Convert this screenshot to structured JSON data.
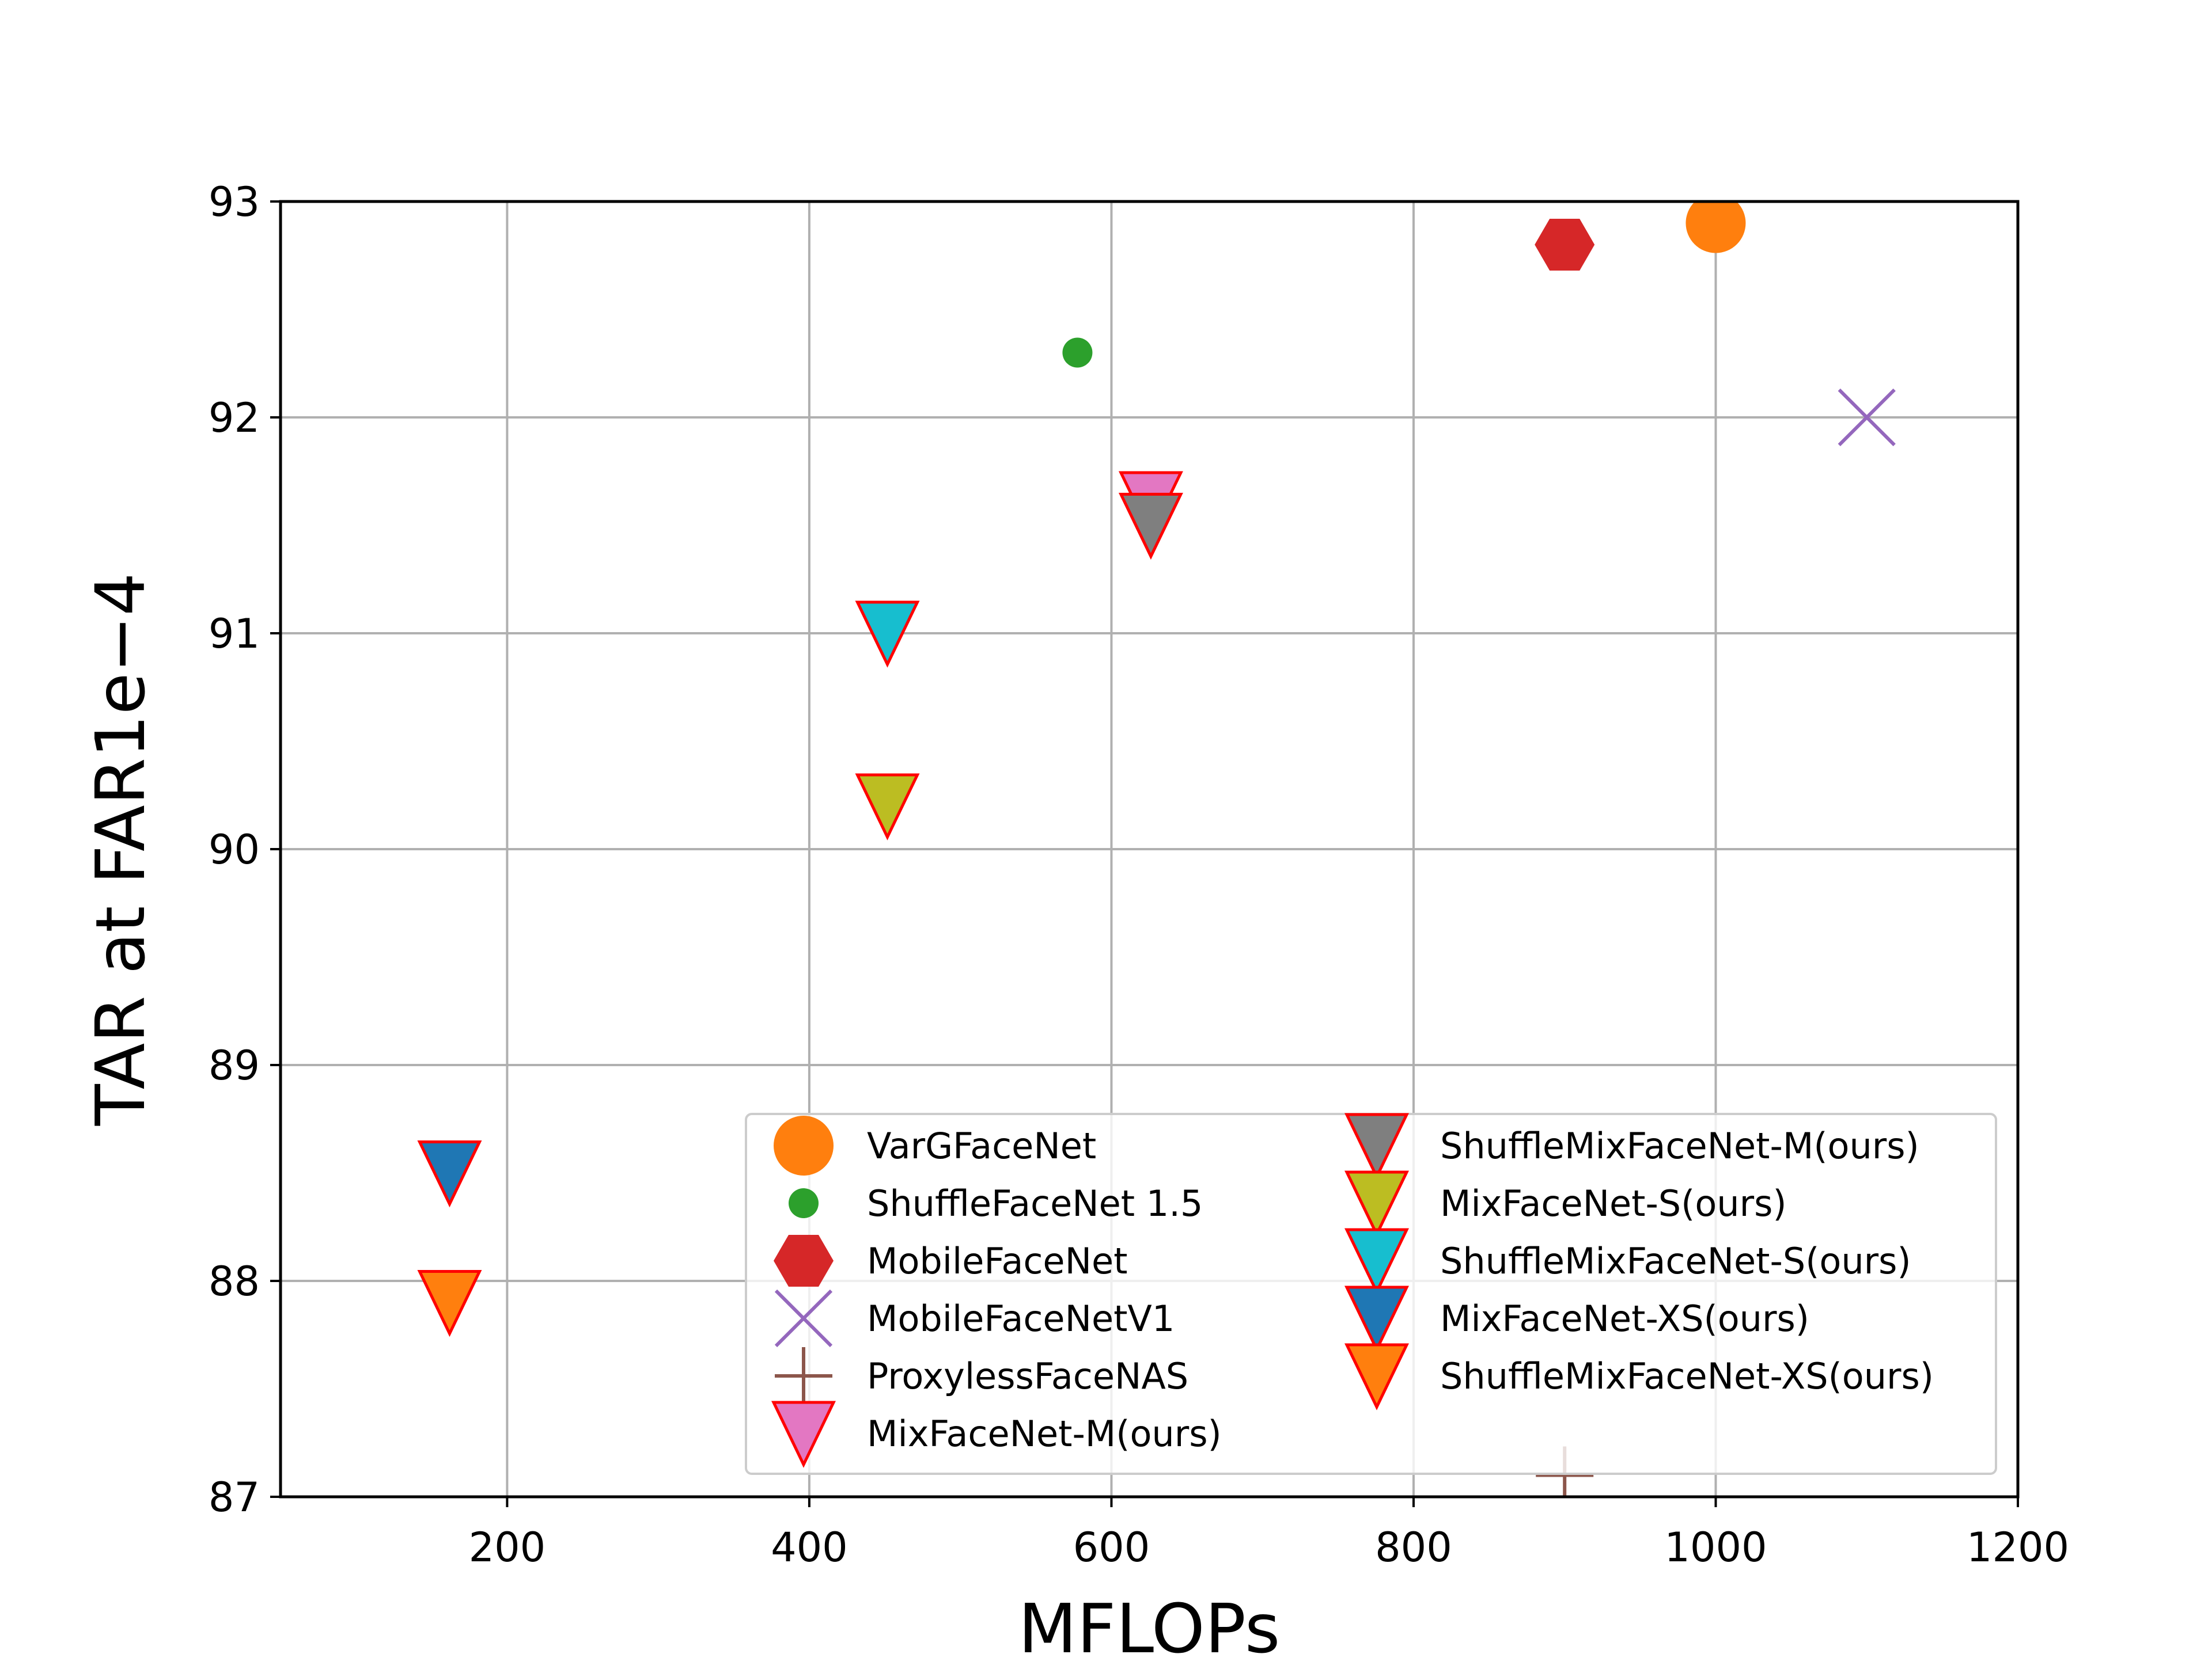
{
  "chart_data": {
    "type": "scatter",
    "title": "",
    "xlabel": "MFLOPs",
    "ylabel": "TAR at FAR1e−4",
    "xlim": [
      50,
      1200
    ],
    "ylim": [
      87,
      93
    ],
    "xticks": [
      200,
      400,
      600,
      800,
      1000,
      1200
    ],
    "yticks": [
      87,
      88,
      89,
      90,
      91,
      92,
      93
    ],
    "grid": true,
    "legend_position": "lower-right",
    "legend_columns": 2,
    "series": [
      {
        "name": "VarGFaceNet",
        "x": 1000,
        "y": 92.9,
        "marker": "circle",
        "color": "#ff7f0e",
        "edge": "none"
      },
      {
        "name": "ShuffleFaceNet 1.5",
        "x": 577.5,
        "y": 92.3,
        "marker": "small-circle",
        "color": "#2ca02c",
        "edge": "none"
      },
      {
        "name": "MobileFaceNet",
        "x": 900,
        "y": 92.8,
        "marker": "hexagon",
        "color": "#d62728",
        "edge": "none"
      },
      {
        "name": "MobileFaceNetV1",
        "x": 1100,
        "y": 92.0,
        "marker": "x",
        "color": "#9467bd",
        "edge": "none"
      },
      {
        "name": "ProxylessFaceNAS",
        "x": 900,
        "y": 87.1,
        "marker": "plus",
        "color": "#8c564b",
        "edge": "none"
      },
      {
        "name": "MixFaceNet-M(ours)",
        "x": 626.1,
        "y": 91.6,
        "marker": "triangle-down",
        "color": "#e377c2",
        "edge": "#ff0000"
      },
      {
        "name": "ShuffleMixFaceNet-M(ours)",
        "x": 626.1,
        "y": 91.5,
        "marker": "triangle-down",
        "color": "#7f7f7f",
        "edge": "#ff0000"
      },
      {
        "name": "MixFaceNet-S(ours)",
        "x": 451.7,
        "y": 90.2,
        "marker": "triangle-down",
        "color": "#bcbd22",
        "edge": "#ff0000"
      },
      {
        "name": "ShuffleMixFaceNet-S(ours)",
        "x": 451.7,
        "y": 91.0,
        "marker": "triangle-down",
        "color": "#17becf",
        "edge": "#ff0000"
      },
      {
        "name": "MixFaceNet-XS(ours)",
        "x": 161.9,
        "y": 88.5,
        "marker": "triangle-down",
        "color": "#1f77b4",
        "edge": "#ff0000"
      },
      {
        "name": "ShuffleMixFaceNet-XS(ours)",
        "x": 161.9,
        "y": 87.9,
        "marker": "triangle-down",
        "color": "#ff7f0e",
        "edge": "#ff0000"
      }
    ]
  }
}
